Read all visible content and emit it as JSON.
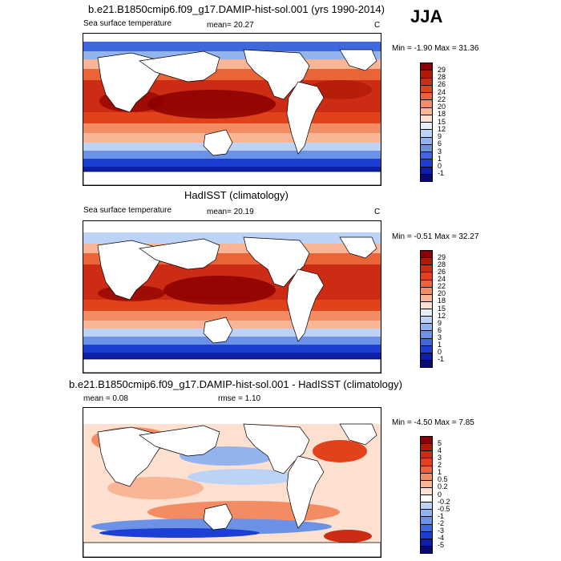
{
  "season": "JJA",
  "panels": [
    {
      "title": "b.e21.B1850cmip6.f09_g17.DAMIP-hist-sol.001 (yrs 1990-2014)",
      "left": "Sea surface temperature",
      "mean_text": "mean=  20.27",
      "units": "C",
      "minmax": "Min =  -1.90 Max =  31.36",
      "levels": [
        "29",
        "28",
        "26",
        "24",
        "22",
        "20",
        "18",
        "15",
        "12",
        "9",
        "6",
        "3",
        "1",
        "0",
        "-1"
      ],
      "colors": [
        "#8b0000",
        "#b21a05",
        "#cc2b14",
        "#e0431c",
        "#eb6438",
        "#f38c62",
        "#f9b596",
        "#fde0cf",
        "#e6eefb",
        "#bcd3f6",
        "#92b4ee",
        "#6b92e6",
        "#3f68df",
        "#1c3fd2",
        "#0d1fa8",
        "#06087a"
      ]
    },
    {
      "title": "HadISST (climatology)",
      "left": "Sea surface temperature",
      "mean_text": "mean=  20.19",
      "units": "C",
      "minmax": "Min =  -0.51 Max =  32.27",
      "levels": [
        "29",
        "28",
        "26",
        "24",
        "22",
        "20",
        "18",
        "15",
        "12",
        "9",
        "6",
        "3",
        "1",
        "0",
        "-1"
      ],
      "colors": [
        "#8b0000",
        "#b21a05",
        "#cc2b14",
        "#e0431c",
        "#eb6438",
        "#f38c62",
        "#f9b596",
        "#fde0cf",
        "#e6eefb",
        "#bcd3f6",
        "#92b4ee",
        "#6b92e6",
        "#3f68df",
        "#1c3fd2",
        "#0d1fa8",
        "#06087a"
      ]
    },
    {
      "title": "b.e21.B1850cmip6.f09_g17.DAMIP-hist-sol.001 - HadISST (climatology)",
      "left": "mean =   0.08",
      "mean_text": "rmse =   1.10",
      "units": "",
      "minmax": "Min =  -4.50 Max =   7.85",
      "levels": [
        "5",
        "4",
        "3",
        "2",
        "1",
        "0.5",
        "0.2",
        "0",
        "-0.2",
        "-0.5",
        "-1",
        "-2",
        "-3",
        "-4",
        "-5"
      ],
      "colors": [
        "#8b0000",
        "#b21a05",
        "#cc2b14",
        "#e0431c",
        "#eb6438",
        "#f38c62",
        "#f9b596",
        "#fde0cf",
        "#ffffff",
        "#bcd3f6",
        "#92b4ee",
        "#6b92e6",
        "#3f68df",
        "#1c3fd2",
        "#0d1fa8",
        "#06087a"
      ]
    }
  ]
}
